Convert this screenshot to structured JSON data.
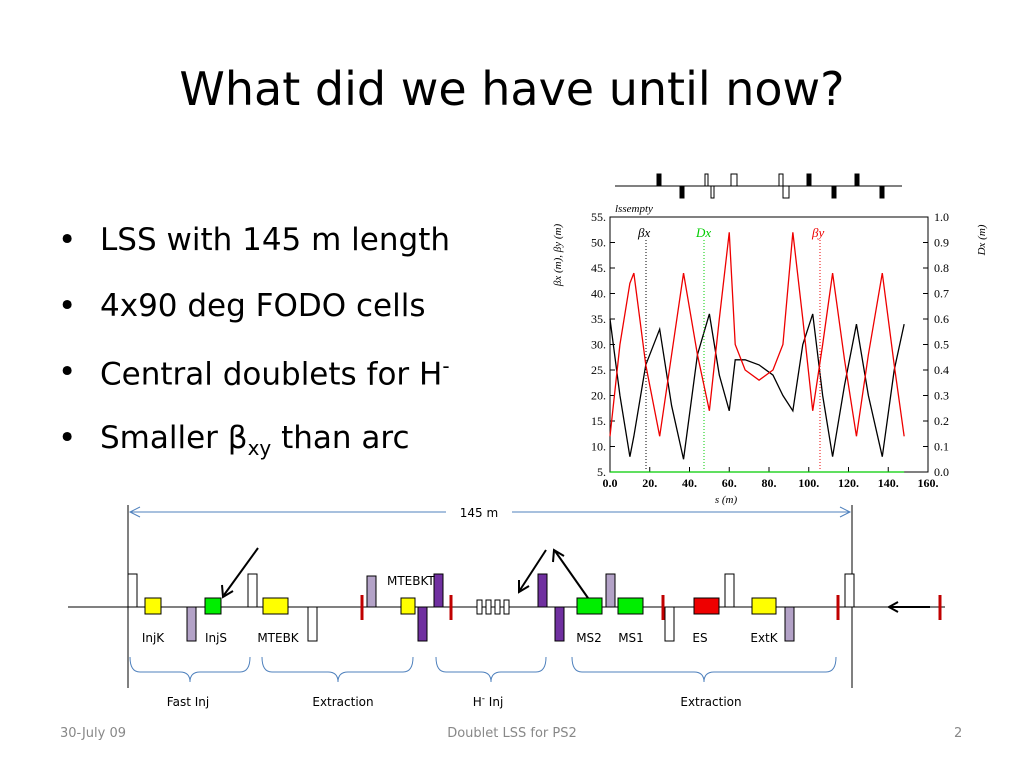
{
  "title": "What did we have until now?",
  "bullets": [
    {
      "text": "LSS with 145 m length"
    },
    {
      "text": "4x90 deg FODO cells"
    },
    {
      "text": "Central doublets for H",
      "sup": "-"
    },
    {
      "text": "Smaller β",
      "sub": "xy",
      "tail": " than arc"
    }
  ],
  "chart_data": {
    "type": "line",
    "title": "lssempty",
    "x_label": "s (m)",
    "y_label": "βx (m), βy (m)",
    "y2_label": "Dx (m)",
    "x": [
      0,
      5,
      10,
      12,
      18,
      25,
      31,
      37,
      44,
      50,
      55,
      60,
      63,
      68,
      75,
      82,
      87,
      92,
      97,
      102,
      107,
      112,
      118,
      124,
      130,
      137,
      143,
      148
    ],
    "series": [
      {
        "name": "βx",
        "color": "#000000",
        "values": [
          35,
          20,
          8,
          12,
          26,
          33,
          18,
          7.5,
          28,
          36,
          24,
          17,
          27,
          27,
          26,
          24,
          20,
          17,
          30,
          36,
          20,
          8,
          22,
          34,
          20,
          8,
          25,
          34
        ]
      },
      {
        "name": "Dx",
        "color": "#00cc00",
        "axis": "y2",
        "values": [
          0,
          0,
          0,
          0,
          0,
          0,
          0,
          0,
          0,
          0,
          0,
          0,
          0,
          0,
          0,
          0,
          0,
          0,
          0,
          0,
          0,
          0,
          0,
          0,
          0,
          0,
          0,
          0
        ]
      },
      {
        "name": "βy",
        "color": "#ee0000",
        "values": [
          12,
          30,
          42,
          44,
          26,
          12,
          28,
          44,
          28,
          17,
          35,
          52,
          30,
          25,
          23,
          25,
          30,
          52,
          35,
          17,
          30,
          44,
          27,
          12,
          28,
          44,
          26,
          12
        ]
      }
    ],
    "xlim": [
      0,
      160
    ],
    "xticks": [
      {
        "value": 0,
        "label": "0.0"
      },
      {
        "value": 20,
        "label": "20."
      },
      {
        "value": 40,
        "label": "40."
      },
      {
        "value": 60,
        "label": "60."
      },
      {
        "value": 80,
        "label": "80."
      },
      {
        "value": 100,
        "label": "100."
      },
      {
        "value": 120,
        "label": "120."
      },
      {
        "value": 140,
        "label": "140."
      },
      {
        "value": 160,
        "label": "160."
      }
    ],
    "ylim": [
      5,
      55
    ],
    "yticks": [
      {
        "value": 5,
        "label": "5."
      },
      {
        "value": 10,
        "label": "10."
      },
      {
        "value": 15,
        "label": "15."
      },
      {
        "value": 20,
        "label": "20."
      },
      {
        "value": 25,
        "label": "25."
      },
      {
        "value": 30,
        "label": "30."
      },
      {
        "value": 35,
        "label": "35."
      },
      {
        "value": 40,
        "label": "40."
      },
      {
        "value": 45,
        "label": "45."
      },
      {
        "value": 50,
        "label": "50."
      },
      {
        "value": 55,
        "label": "55."
      }
    ],
    "y2lim": [
      0,
      1
    ],
    "y2ticks": [
      {
        "value": 0,
        "label": "0.0"
      },
      0.1,
      0.2,
      0.3,
      0.4,
      0.5,
      0.6,
      0.7,
      0.8,
      0.9,
      {
        "value": 1,
        "label": "1.0"
      }
    ]
  },
  "diagram": {
    "length": "145 m",
    "mtebkt": "MTEBKT",
    "elements": [
      "InjK",
      "InjS",
      "MTEBK",
      "MS2",
      "MS1",
      "ES",
      "ExtK"
    ],
    "sections": [
      {
        "text": "Fast Inj"
      },
      {
        "text": "Extraction"
      },
      {
        "text": "H",
        "sup": "-",
        "tail": " Inj"
      },
      {
        "text": "Extraction"
      }
    ]
  },
  "footer": {
    "date": "30-July 09",
    "center": "Doublet LSS for PS2",
    "page": "2"
  }
}
